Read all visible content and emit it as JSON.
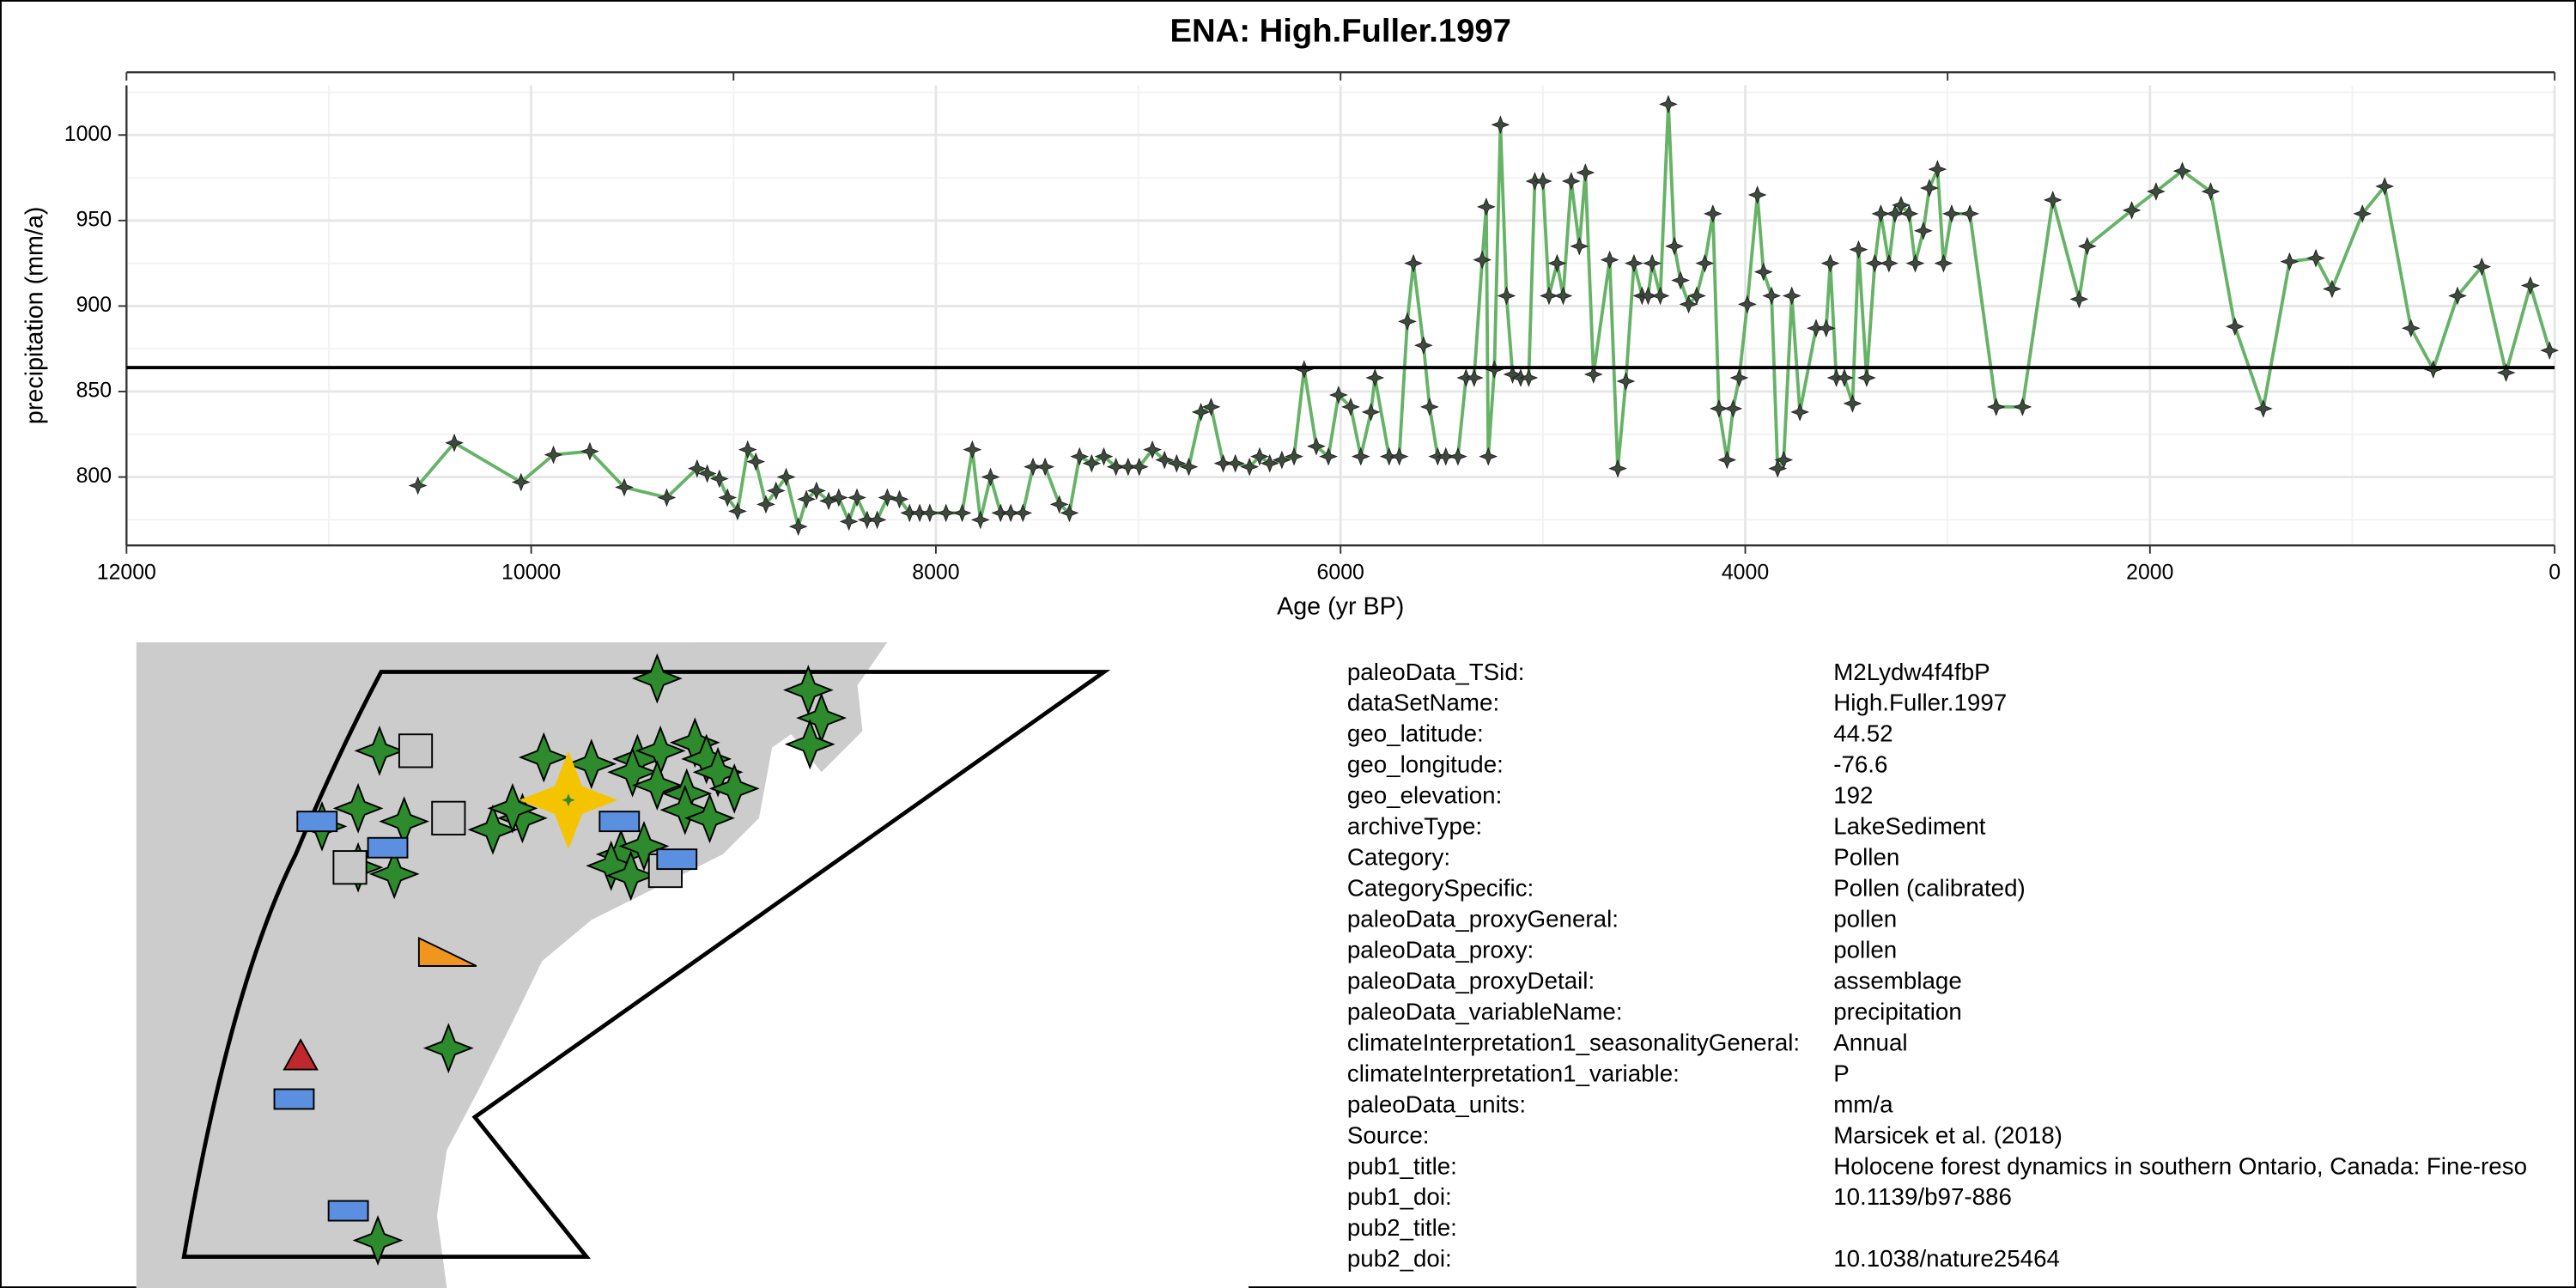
{
  "chart_data": {
    "type": "line",
    "title": "ENA: High.Fuller.1997",
    "x_label": "Age (yr BP)",
    "y_label": "precipitation (mm/a)",
    "xlim": [
      12000,
      0
    ],
    "xticks": [
      12000,
      10000,
      8000,
      6000,
      4000,
      2000,
      0
    ],
    "ylim": [
      760,
      1029
    ],
    "yticks": [
      800,
      850,
      900,
      950,
      1000
    ],
    "grid": true,
    "hline": 864,
    "x": [
      10560,
      10380,
      10050,
      9890,
      9710,
      9540,
      9330,
      9180,
      9130,
      9070,
      9030,
      8980,
      8930,
      8890,
      8840,
      8790,
      8740,
      8680,
      8640,
      8590,
      8530,
      8480,
      8430,
      8390,
      8340,
      8290,
      8240,
      8180,
      8130,
      8080,
      8030,
      7950,
      7870,
      7820,
      7780,
      7730,
      7680,
      7630,
      7570,
      7520,
      7460,
      7390,
      7340,
      7290,
      7230,
      7170,
      7110,
      7050,
      6995,
      6930,
      6870,
      6810,
      6750,
      6690,
      6640,
      6580,
      6520,
      6450,
      6400,
      6350,
      6290,
      6230,
      6180,
      6120,
      6060,
      6010,
      5950,
      5900,
      5850,
      5830,
      5760,
      5710,
      5670,
      5640,
      5590,
      5560,
      5520,
      5480,
      5420,
      5380,
      5340,
      5300,
      5280,
      5270,
      5240,
      5210,
      5180,
      5150,
      5110,
      5070,
      5040,
      5000,
      4970,
      4930,
      4900,
      4860,
      4820,
      4790,
      4750,
      4670,
      4630,
      4590,
      4550,
      4510,
      4480,
      4460,
      4420,
      4380,
      4350,
      4320,
      4280,
      4240,
      4200,
      4160,
      4130,
      4090,
      4060,
      4030,
      3990,
      3940,
      3910,
      3870,
      3840,
      3810,
      3770,
      3730,
      3650,
      3600,
      3580,
      3550,
      3510,
      3470,
      3440,
      3400,
      3360,
      3330,
      3290,
      3260,
      3230,
      3190,
      3160,
      3120,
      3090,
      3050,
      3020,
      2980,
      2890,
      2760,
      2630,
      2480,
      2350,
      2310,
      2090,
      1970,
      1840,
      1700,
      1580,
      1440,
      1310,
      1180,
      1100,
      950,
      840,
      710,
      600,
      480,
      360,
      240,
      120,
      25
    ],
    "series": [
      {
        "name": "precipitation",
        "color": "#66b266",
        "values": [
          795,
          820,
          797,
          813,
          815,
          794,
          788,
          805,
          802,
          799,
          788,
          780,
          816,
          809,
          784,
          792,
          800,
          771,
          787,
          792,
          786,
          788,
          774,
          788,
          775,
          775,
          788,
          787,
          779,
          779,
          779,
          779,
          779,
          816,
          775,
          800,
          779,
          779,
          779,
          806,
          806,
          784,
          779,
          812,
          808,
          812,
          806,
          806,
          806,
          816,
          810,
          808,
          806,
          838,
          841,
          808,
          808,
          806,
          812,
          808,
          810,
          812,
          863,
          818,
          812,
          848,
          841,
          812,
          838,
          858,
          812,
          812,
          891,
          925,
          877,
          841,
          812,
          812,
          812,
          858,
          858,
          927,
          958,
          812,
          863,
          1006,
          906,
          860,
          858,
          858,
          973,
          973,
          906,
          925,
          906,
          973,
          935,
          978,
          860,
          927,
          805,
          856,
          925,
          906,
          906,
          925,
          906,
          1018,
          935,
          915,
          901,
          906,
          925,
          954,
          840,
          810,
          840,
          858,
          901,
          965,
          920,
          906,
          805,
          810,
          906,
          838,
          887,
          887,
          925,
          858,
          858,
          843,
          933,
          858,
          925,
          954,
          925,
          954,
          959,
          954,
          925,
          944,
          969,
          980,
          925,
          954,
          954,
          841,
          841,
          962,
          904,
          935,
          956,
          967,
          979,
          967,
          888,
          840,
          926,
          928,
          910,
          954,
          970,
          887,
          863,
          906,
          923,
          861,
          912,
          874
        ]
      }
    ]
  },
  "metadata": {
    "rows": [
      [
        "paleoData_TSid:",
        "M2Lydw4f4fbP"
      ],
      [
        "dataSetName:",
        "High.Fuller.1997"
      ],
      [
        "geo_latitude:",
        "44.52"
      ],
      [
        "geo_longitude:",
        "-76.6"
      ],
      [
        "geo_elevation:",
        "192"
      ],
      [
        "archiveType:",
        "LakeSediment"
      ],
      [
        "Category:",
        "Pollen"
      ],
      [
        "CategorySpecific:",
        "Pollen (calibrated)"
      ],
      [
        "paleoData_proxyGeneral:",
        "pollen"
      ],
      [
        "paleoData_proxy:",
        "pollen"
      ],
      [
        "paleoData_proxyDetail:",
        "assemblage"
      ],
      [
        "paleoData_variableName:",
        "precipitation"
      ],
      [
        "climateInterpretation1_seasonalityGeneral:",
        "Annual"
      ],
      [
        "climateInterpretation1_variable:",
        "P"
      ],
      [
        "paleoData_units:",
        "mm/a"
      ],
      [
        "Source:",
        "Marsicek et al. (2018)"
      ],
      [
        "pub1_title:",
        "Holocene forest dynamics in southern Ontario, Canada: Fine-reso"
      ],
      [
        "pub1_doi:",
        "10.1139/b97-886"
      ],
      [
        "pub2_title:"
      ],
      [
        "pub2_doi:",
        "10.1038/nature25464"
      ]
    ]
  }
}
